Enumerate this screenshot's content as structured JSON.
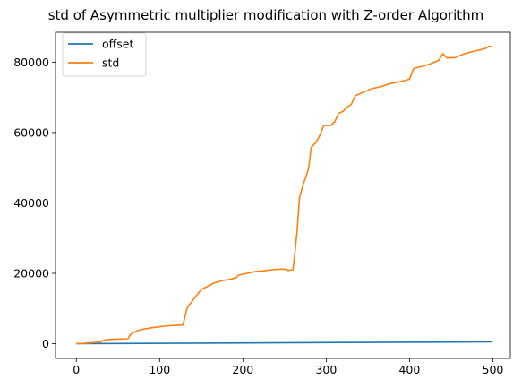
{
  "chart_data": {
    "type": "line",
    "title": "std of Asymmetric multiplier modification with Z-order Algorithm",
    "xlabel": "",
    "ylabel": "",
    "xlim": [
      -25,
      521
    ],
    "ylim": [
      -4200,
      88500
    ],
    "x_ticks": [
      0,
      100,
      200,
      300,
      400,
      500
    ],
    "y_ticks": [
      0,
      20000,
      40000,
      60000,
      80000
    ],
    "grid": false,
    "legend_position": "top-left",
    "series": [
      {
        "name": "offset",
        "color": "#1f77b4",
        "points": [
          [
            0,
            0
          ],
          [
            499,
            499
          ]
        ]
      },
      {
        "name": "std",
        "color": "#ff7f0e",
        "points": [
          [
            0,
            0
          ],
          [
            10,
            100
          ],
          [
            20,
            300
          ],
          [
            30,
            500
          ],
          [
            33,
            1000
          ],
          [
            40,
            1200
          ],
          [
            50,
            1300
          ],
          [
            62,
            1400
          ],
          [
            65,
            2600
          ],
          [
            72,
            3600
          ],
          [
            80,
            4100
          ],
          [
            90,
            4500
          ],
          [
            100,
            4800
          ],
          [
            110,
            5100
          ],
          [
            120,
            5200
          ],
          [
            128,
            5300
          ],
          [
            133,
            10200
          ],
          [
            137,
            11400
          ],
          [
            142,
            13000
          ],
          [
            146,
            14200
          ],
          [
            150,
            15400
          ],
          [
            158,
            16300
          ],
          [
            165,
            17200
          ],
          [
            175,
            17900
          ],
          [
            185,
            18300
          ],
          [
            192,
            18800
          ],
          [
            195,
            19500
          ],
          [
            205,
            20000
          ],
          [
            215,
            20500
          ],
          [
            225,
            20700
          ],
          [
            235,
            21000
          ],
          [
            245,
            21200
          ],
          [
            252,
            21200
          ],
          [
            254,
            20800
          ],
          [
            260,
            21000
          ],
          [
            262,
            24800
          ],
          [
            265,
            31800
          ],
          [
            268,
            41500
          ],
          [
            272,
            45000
          ],
          [
            276,
            47700
          ],
          [
            279,
            50000
          ],
          [
            282,
            55800
          ],
          [
            287,
            57000
          ],
          [
            292,
            59000
          ],
          [
            297,
            62000
          ],
          [
            305,
            62000
          ],
          [
            310,
            63000
          ],
          [
            315,
            65500
          ],
          [
            320,
            66000
          ],
          [
            325,
            67200
          ],
          [
            330,
            68000
          ],
          [
            335,
            70500
          ],
          [
            345,
            71500
          ],
          [
            355,
            72500
          ],
          [
            365,
            73000
          ],
          [
            375,
            73800
          ],
          [
            385,
            74300
          ],
          [
            395,
            74800
          ],
          [
            400,
            75200
          ],
          [
            405,
            78200
          ],
          [
            415,
            78800
          ],
          [
            425,
            79500
          ],
          [
            435,
            80500
          ],
          [
            440,
            82400
          ],
          [
            445,
            81200
          ],
          [
            455,
            81300
          ],
          [
            465,
            82300
          ],
          [
            475,
            83000
          ],
          [
            485,
            83500
          ],
          [
            492,
            84000
          ],
          [
            495,
            84500
          ],
          [
            499,
            84400
          ]
        ]
      }
    ]
  }
}
